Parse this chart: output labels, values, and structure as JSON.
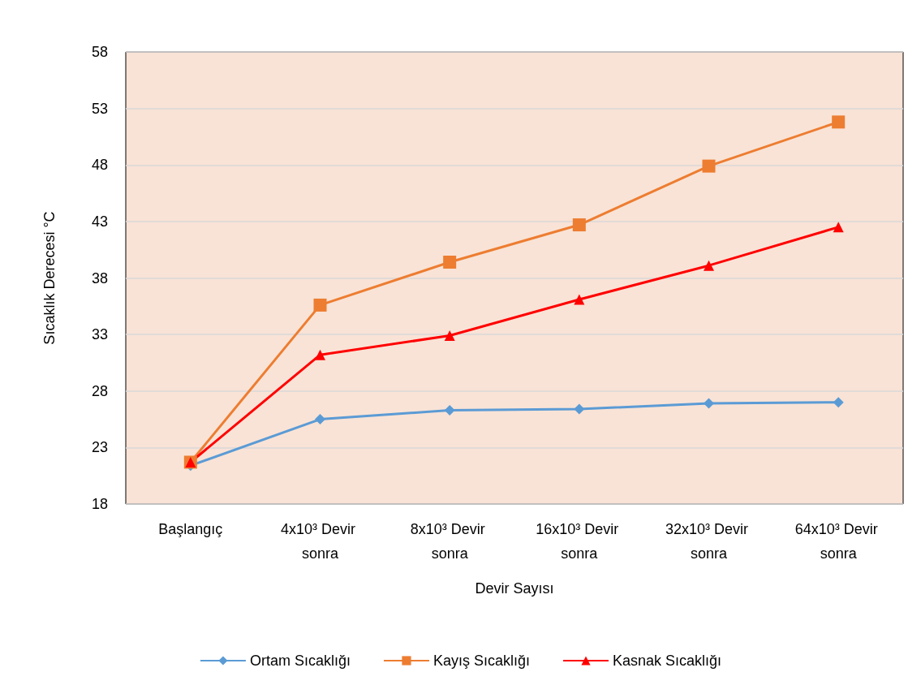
{
  "chart_data": {
    "type": "line",
    "xlabel": "Devir Sayısı",
    "ylabel": "Sıcaklık Derecesi °C",
    "categories": [
      "Başlangıç",
      "4x10³ Devir sonra",
      "8x10³ Devir sonra",
      "16x10³ Devir sonra",
      "32x10³ Devir sonra",
      "64x10³ Devir sonra"
    ],
    "series": [
      {
        "name": "Ortam Sıcaklığı",
        "color": "#5b9bd5",
        "marker": "diamond",
        "values": [
          21.4,
          25.5,
          26.3,
          26.4,
          26.9,
          27.0
        ]
      },
      {
        "name": "Kayış Sıcaklığı",
        "color": "#ed7d31",
        "marker": "square",
        "values": [
          21.7,
          35.6,
          39.4,
          42.7,
          47.9,
          51.8
        ]
      },
      {
        "name": "Kasnak Sıcaklığı",
        "color": "#ff0000",
        "marker": "triangle",
        "values": [
          21.7,
          31.2,
          32.9,
          36.1,
          39.1,
          42.5
        ]
      }
    ],
    "ylim": [
      18,
      58
    ],
    "yticks": [
      18,
      23,
      28,
      33,
      38,
      43,
      48,
      53,
      58
    ],
    "grid": "y",
    "legend": "bottom"
  }
}
